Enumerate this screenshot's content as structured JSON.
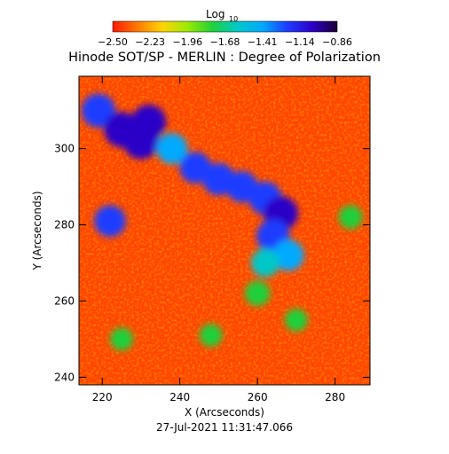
{
  "chart_data": {
    "type": "heatmap",
    "title": "Hinode SOT/SP - MERLIN : Degree of Polarization",
    "xlabel": "X (Arcseconds)",
    "ylabel": "Y (Arcseconds)",
    "xlim": [
      214,
      289
    ],
    "ylim": [
      238,
      319
    ],
    "x_ticks": [
      220,
      240,
      260,
      280
    ],
    "y_ticks": [
      240,
      260,
      280,
      300
    ],
    "colorbar": {
      "label_main": "Log",
      "label_sub": "10",
      "range": [
        -2.5,
        -0.86
      ],
      "tick_labels": [
        "-2.50",
        "-2.23",
        "-1.96",
        "-1.68",
        "-1.41",
        "-1.14",
        "-0.86"
      ],
      "colors": [
        "#ff1a00",
        "#ff7a00",
        "#ffd400",
        "#9bea00",
        "#1fd13b",
        "#00c8c8",
        "#00aaff",
        "#1f3cff",
        "#2b00c8",
        "#1a0033"
      ]
    },
    "background_value": -2.42,
    "high_polarization_regions": [
      {
        "x": 219,
        "y": 310,
        "value": -1.15
      },
      {
        "x": 225,
        "y": 305,
        "value": -1.05
      },
      {
        "x": 230,
        "y": 302,
        "value": -1.0
      },
      {
        "x": 232,
        "y": 307,
        "value": -1.1
      },
      {
        "x": 238,
        "y": 300,
        "value": -1.35
      },
      {
        "x": 244,
        "y": 295,
        "value": -1.3
      },
      {
        "x": 250,
        "y": 292,
        "value": -1.25
      },
      {
        "x": 256,
        "y": 290,
        "value": -1.3
      },
      {
        "x": 262,
        "y": 287,
        "value": -1.2
      },
      {
        "x": 266,
        "y": 283,
        "value": -1.1
      },
      {
        "x": 264,
        "y": 277,
        "value": -1.2
      },
      {
        "x": 268,
        "y": 272,
        "value": -1.35
      },
      {
        "x": 262,
        "y": 270,
        "value": -1.5
      },
      {
        "x": 222,
        "y": 281,
        "value": -1.3
      },
      {
        "x": 260,
        "y": 262,
        "value": -1.7
      },
      {
        "x": 225,
        "y": 250,
        "value": -1.85
      },
      {
        "x": 248,
        "y": 251,
        "value": -1.85
      },
      {
        "x": 270,
        "y": 255,
        "value": -1.85
      },
      {
        "x": 284,
        "y": 282,
        "value": -1.8
      }
    ]
  },
  "footer": {
    "timestamp": "27-Jul-2021  11:31:47.066"
  }
}
